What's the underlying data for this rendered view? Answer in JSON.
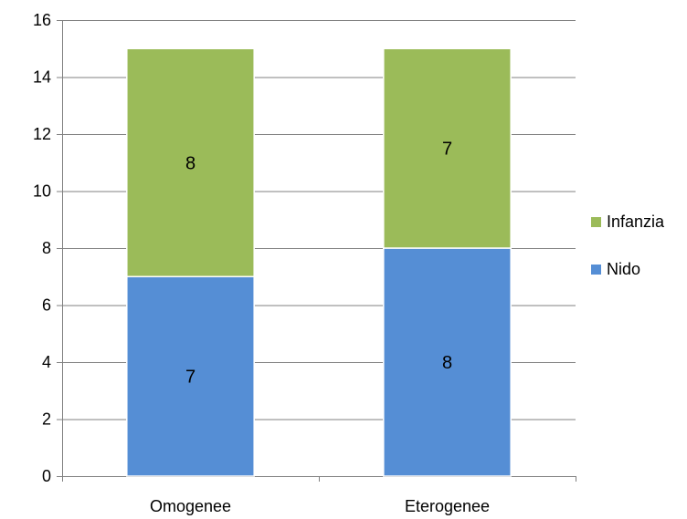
{
  "chart_data": {
    "type": "bar",
    "stacked": true,
    "categories": [
      "Omogenee",
      "Eterogenee"
    ],
    "series": [
      {
        "name": "Nido",
        "values": [
          7,
          8
        ],
        "color": "#558ed5"
      },
      {
        "name": "Infanzia",
        "values": [
          8,
          7
        ],
        "color": "#9bbb59"
      }
    ],
    "ylim": [
      0,
      16
    ],
    "yticks": [
      0,
      2,
      4,
      6,
      8,
      10,
      12,
      14,
      16
    ],
    "grid": true,
    "legend_position": "right"
  }
}
